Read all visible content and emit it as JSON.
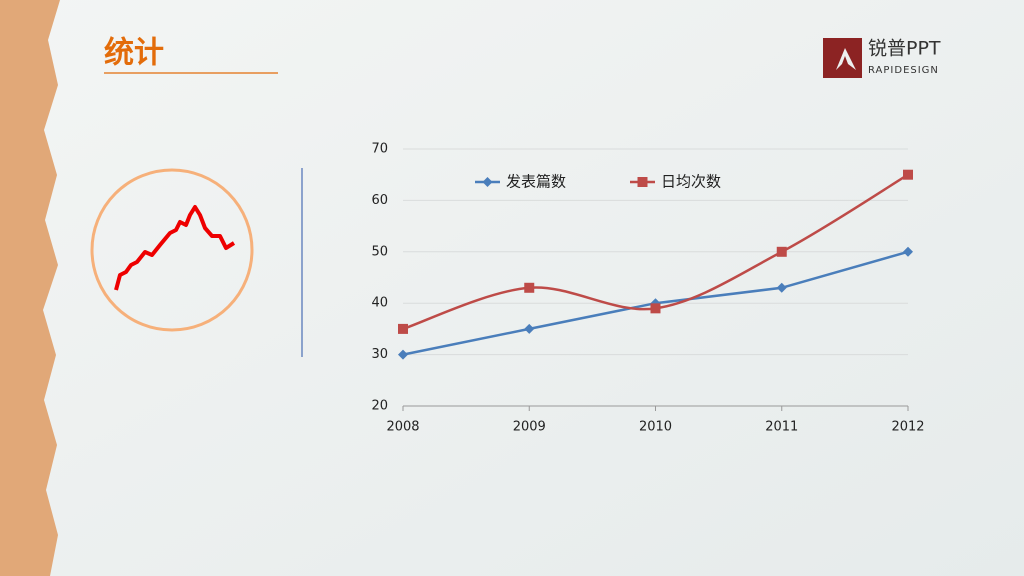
{
  "header": {
    "title": "统计"
  },
  "logo": {
    "name": "锐普PPT",
    "sub": "RAPIDESIGN"
  },
  "chart_data": {
    "type": "line",
    "categories": [
      "2008",
      "2009",
      "2010",
      "2011",
      "2012"
    ],
    "series": [
      {
        "name": "发表篇数",
        "color": "#4a7ebb",
        "marker": "diamond",
        "smooth": false,
        "values": [
          30,
          35,
          40,
          43,
          50
        ]
      },
      {
        "name": "日均次数",
        "color": "#be4b48",
        "marker": "square",
        "smooth": true,
        "values": [
          35,
          43,
          39,
          50,
          65
        ]
      }
    ],
    "ylim": [
      20,
      70
    ],
    "yticks": [
      20,
      30,
      40,
      50,
      60,
      70
    ],
    "grid": true,
    "legend": "top"
  }
}
